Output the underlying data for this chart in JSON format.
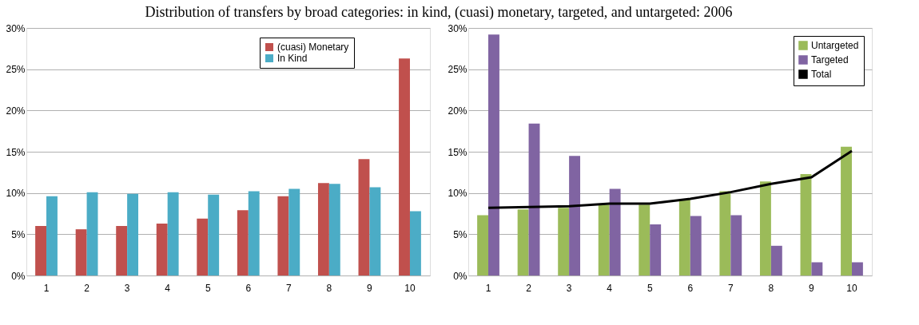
{
  "chart_data": [
    {
      "type": "bar",
      "title": "Distribution of transfers by broad categories: in kind, (cuasi) monetary, targeted, and untargeted: 2006",
      "categories": [
        "1",
        "2",
        "3",
        "4",
        "5",
        "6",
        "7",
        "8",
        "9",
        "10"
      ],
      "series": [
        {
          "name": "(cuasi) Monetary",
          "color": "#c0504d",
          "values": [
            6.0,
            5.6,
            6.0,
            6.3,
            6.9,
            7.9,
            9.6,
            11.2,
            14.1,
            26.3
          ]
        },
        {
          "name": "In Kind",
          "color": "#4bacc6",
          "values": [
            9.6,
            10.1,
            9.9,
            10.1,
            9.8,
            10.2,
            10.5,
            11.1,
            10.7,
            7.8
          ]
        }
      ],
      "ylim": [
        0,
        30
      ],
      "yticks": [
        {
          "value": 0,
          "label": "0%"
        },
        {
          "value": 5,
          "label": "5%"
        },
        {
          "value": 10,
          "label": "10%"
        },
        {
          "value": 15,
          "label": "15%"
        },
        {
          "value": 20,
          "label": "20%"
        },
        {
          "value": 25,
          "label": "25%"
        },
        {
          "value": 30,
          "label": "30%"
        }
      ],
      "grid": "y",
      "legend": "top right"
    },
    {
      "type": "bar",
      "categories": [
        "1",
        "2",
        "3",
        "4",
        "5",
        "6",
        "7",
        "8",
        "9",
        "10"
      ],
      "series": [
        {
          "name": "Untargeted",
          "color": "#9bbb59",
          "values": [
            7.3,
            8.0,
            8.2,
            8.6,
            8.6,
            9.3,
            10.2,
            11.4,
            12.3,
            15.6
          ]
        },
        {
          "name": "Targeted",
          "color": "#8064a2",
          "values": [
            29.2,
            18.4,
            14.5,
            10.5,
            6.2,
            7.2,
            7.3,
            3.6,
            1.6,
            1.6
          ]
        },
        {
          "name": "Total",
          "type": "line",
          "color": "#000000",
          "values": [
            8.2,
            8.3,
            8.4,
            8.7,
            8.7,
            9.3,
            10.1,
            11.1,
            11.9,
            15.1
          ]
        }
      ],
      "ylim": [
        0,
        30
      ],
      "yticks": [
        {
          "value": 0,
          "label": "0%"
        },
        {
          "value": 5,
          "label": "5%"
        },
        {
          "value": 10,
          "label": "10%"
        },
        {
          "value": 15,
          "label": "15%"
        },
        {
          "value": 20,
          "label": "20%"
        },
        {
          "value": 25,
          "label": "25%"
        },
        {
          "value": 30,
          "label": "30%"
        }
      ],
      "grid": "y",
      "legend": "top right"
    }
  ]
}
